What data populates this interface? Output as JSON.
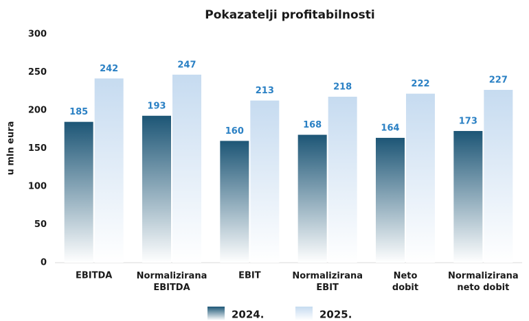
{
  "chart_data": {
    "type": "bar",
    "title": "Pokazatelji profitabilnosti",
    "y_label": "u mln eura",
    "categories": [
      "EBITDA",
      "Normalizirana\nEBITDA",
      "EBIT",
      "Normalizirana\nEBIT",
      "Neto\ndobit",
      "Normalizirana\nneto dobit"
    ],
    "series": [
      {
        "name": "2024.",
        "color": "#1d5676",
        "values": [
          185,
          193,
          160,
          168,
          164,
          173
        ]
      },
      {
        "name": "2025.",
        "color": "#c6dbf0",
        "values": [
          242,
          247,
          213,
          218,
          222,
          227
        ]
      }
    ],
    "ylim": [
      0,
      300
    ],
    "yticks": [
      0,
      50,
      100,
      150,
      200,
      250,
      300
    ],
    "grid": false
  }
}
